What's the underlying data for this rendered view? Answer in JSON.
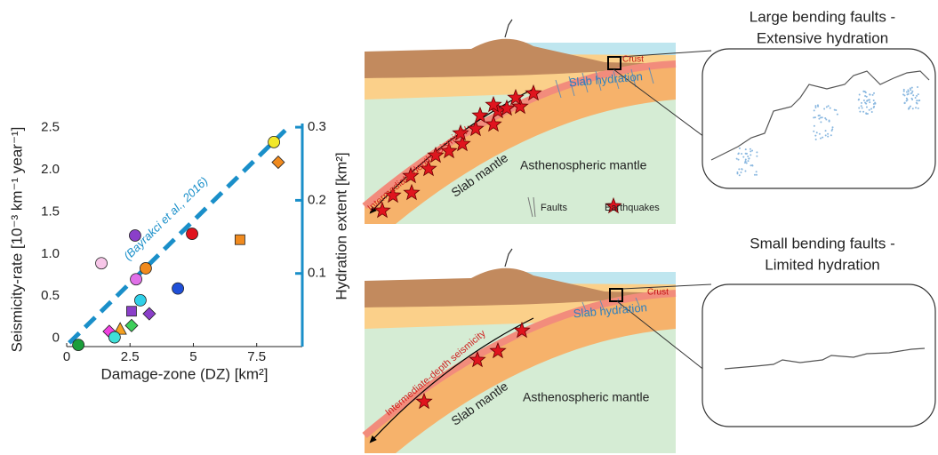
{
  "chart_data": {
    "type": "scatter",
    "x_label": "Damage-zone (DZ) [km²]",
    "y_label": "Seismicity-rate [10⁻³ km⁻¹ year⁻¹]",
    "y2_label": "Hydration extent [km²]",
    "x": [
      0.46,
      1.37,
      2.7,
      4.95,
      8.18,
      8.35,
      6.84,
      3.12,
      2.74,
      2.91,
      4.39,
      2.56,
      3.26,
      2.56,
      2.11,
      1.68,
      1.89
    ],
    "values": [
      -0.08,
      0.89,
      1.22,
      1.24,
      2.33,
      2.09,
      1.17,
      0.83,
      0.7,
      0.45,
      0.59,
      0.32,
      0.29,
      0.15,
      0.11,
      0.08,
      0.01
    ],
    "colors": [
      "#1a9e3a",
      "#f7c6e8",
      "#8a3fc9",
      "#e0141e",
      "#f2e82a",
      "#f08a1e",
      "#f08a1e",
      "#f08a1e",
      "#e070e8",
      "#2fd0e8",
      "#1f4fd8",
      "#8a3fc9",
      "#8a3fc9",
      "#3ecf5a",
      "#f5a020",
      "#f040e0",
      "#3fe0d8"
    ],
    "markers": [
      "circle",
      "circle",
      "circle",
      "circle",
      "circle",
      "diamond",
      "square",
      "circle",
      "circle",
      "circle",
      "circle",
      "square",
      "diamond",
      "diamond",
      "triangle",
      "diamond",
      "circle"
    ],
    "series": [
      {
        "x": [
          0.1,
          8.75
        ],
        "values": [
          0.005,
          0.3
        ],
        "axis": "y2",
        "color": "#1a8fc9",
        "dashed": true
      }
    ],
    "annotation": "(Bayrakci et al., 2016)",
    "xlim": [
      0,
      9.3
    ],
    "xticks": [
      0,
      2.5,
      5,
      7.5
    ],
    "ylim": [
      -0.1,
      2.55
    ],
    "yticks": [
      0,
      0.5,
      {
        "value": 1,
        "label": "1.0"
      },
      1.5,
      {
        "value": 2,
        "label": "2.0"
      },
      2.5
    ],
    "y2lim": [
      0,
      0.305
    ],
    "y2ticks": [
      0.1,
      0.2,
      0.3
    ],
    "y2_color": "#1a8fc9"
  },
  "diagram": {
    "top": {
      "title_line1": "Large bending faults -",
      "title_line2": "Extensive hydration",
      "crust": "Crust",
      "slab_hydration": "Slab hydration",
      "seismicity": "Intermediate-depth seismicity",
      "slab_mantle": "Slab mantle",
      "asthenosphere": "Asthenospheric mantle",
      "legend_faults": "Faults",
      "legend_earthquakes": "Earthquakes"
    },
    "bottom": {
      "title_line1": "Small bending faults -",
      "title_line2": "Limited hydration",
      "crust": "Crust",
      "slab_hydration": "Slab hydration",
      "seismicity": "Intermediate-depth seismicity",
      "slab_mantle": "Slab mantle",
      "asthenosphere": "Asthenospheric mantle"
    }
  }
}
